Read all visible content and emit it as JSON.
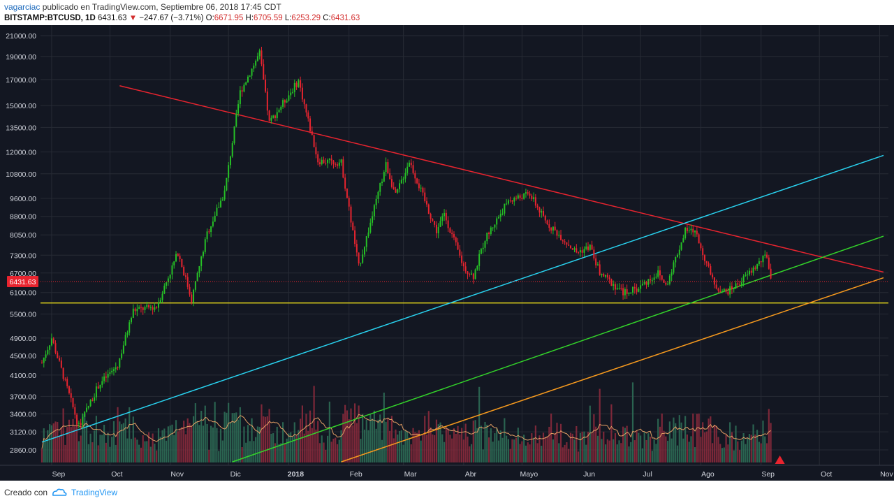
{
  "header": {
    "author": "vagarciac",
    "published_text": "publicado en TradingView.com, Septiembre 06, 2018 17:45 CDT",
    "symbol": "BITSTAMP:BTCUSD, 1D",
    "last": "6431.63",
    "change_arrow": "▼",
    "change": "−247.67 (−3.71%)",
    "o_label": "O:",
    "o_value": "6671.95",
    "h_label": "H:",
    "h_value": "6705.59",
    "l_label": "L:",
    "l_value": "6253.29",
    "c_label": "C:",
    "c_value": "6431.63"
  },
  "footer": {
    "created_with": "Creado con",
    "brand": "TradingView"
  },
  "colors": {
    "background": "#131722",
    "grid": "#272b35",
    "up": "#26c126",
    "down": "#e8242f",
    "volume_up": "#2e6b55",
    "volume_down": "#8a2a3c",
    "volume_ma": "#e6a065",
    "resistance": "#e8242f",
    "cyan_channel": "#29d3f0",
    "green_channel": "#33d42a",
    "orange_channel": "#f79a1e",
    "support": "#f0e21a",
    "price_label_bg": "#e8242f"
  },
  "chart_data": {
    "type": "candlestick",
    "symbol": "BITSTAMP:BTCUSD",
    "interval": "1D",
    "x_labels": [
      "Sep",
      "Oct",
      "Nov",
      "Dic",
      "2018",
      "Feb",
      "Mar",
      "Abr",
      "Mayo",
      "Jun",
      "Jul",
      "Ago",
      "Sep",
      "Oct",
      "Nov"
    ],
    "y_ticks": [
      "21000.00",
      "19000.00",
      "17000.00",
      "15000.00",
      "13500.00",
      "12000.00",
      "10800.00",
      "9600.00",
      "8800.00",
      "8050.00",
      "7300.00",
      "6700.00",
      "6100.00",
      "5500.00",
      "4900.00",
      "4500.00",
      "4100.00",
      "3700.00",
      "3400.00",
      "3120.00",
      "2860.00"
    ],
    "y_scale": "log",
    "y_range": [
      2700,
      22500
    ],
    "last_price": 6431.63,
    "price_path": [
      [
        "2017-08-27",
        4350
      ],
      [
        "2017-09-01",
        4900
      ],
      [
        "2017-09-15",
        3200
      ],
      [
        "2017-09-25",
        3900
      ],
      [
        "2017-10-05",
        4300
      ],
      [
        "2017-10-13",
        5600
      ],
      [
        "2017-10-25",
        5700
      ],
      [
        "2017-11-05",
        7400
      ],
      [
        "2017-11-12",
        5900
      ],
      [
        "2017-11-20",
        8100
      ],
      [
        "2017-11-29",
        9900
      ],
      [
        "2017-12-07",
        16000
      ],
      [
        "2017-12-17",
        19300
      ],
      [
        "2017-12-22",
        13800
      ],
      [
        "2018-01-06",
        16900
      ],
      [
        "2018-01-16",
        11500
      ],
      [
        "2018-01-28",
        11400
      ],
      [
        "2018-02-06",
        6900
      ],
      [
        "2018-02-20",
        11300
      ],
      [
        "2018-02-25",
        9700
      ],
      [
        "2018-03-04",
        11500
      ],
      [
        "2018-03-18",
        8200
      ],
      [
        "2018-03-22",
        8900
      ],
      [
        "2018-04-01",
        6900
      ],
      [
        "2018-04-06",
        6600
      ],
      [
        "2018-04-12",
        7900
      ],
      [
        "2018-04-24",
        9500
      ],
      [
        "2018-05-05",
        9800
      ],
      [
        "2018-05-13",
        8600
      ],
      [
        "2018-05-29",
        7400
      ],
      [
        "2018-06-05",
        7600
      ],
      [
        "2018-06-10",
        6700
      ],
      [
        "2018-06-22",
        6100
      ],
      [
        "2018-06-29",
        6200
      ],
      [
        "2018-07-10",
        6700
      ],
      [
        "2018-07-14",
        6300
      ],
      [
        "2018-07-24",
        8200
      ],
      [
        "2018-07-29",
        8200
      ],
      [
        "2018-08-08",
        6300
      ],
      [
        "2018-08-14",
        6100
      ],
      [
        "2018-08-21",
        6400
      ],
      [
        "2018-09-04",
        7300
      ],
      [
        "2018-09-06",
        6431.63
      ]
    ],
    "trendlines": [
      {
        "name": "resistance",
        "color": "#e8242f",
        "points": [
          [
            "2017-10-06",
            16500
          ],
          [
            "2018-11-03",
            6730
          ]
        ]
      },
      {
        "name": "cyan_channel",
        "color": "#29d3f0",
        "points": [
          [
            "2017-08-27",
            2970
          ],
          [
            "2018-11-03",
            11800
          ]
        ]
      },
      {
        "name": "green_channel",
        "color": "#33d42a",
        "points": [
          [
            "2017-12-03",
            2700
          ],
          [
            "2018-11-03",
            8000
          ]
        ]
      },
      {
        "name": "orange_channel",
        "color": "#f79a1e",
        "points": [
          [
            "2018-01-28",
            2700
          ],
          [
            "2018-11-03",
            6550
          ]
        ]
      },
      {
        "name": "support",
        "color": "#f0e21a",
        "level": 5800
      }
    ],
    "grid": true,
    "volume_pane": true
  }
}
